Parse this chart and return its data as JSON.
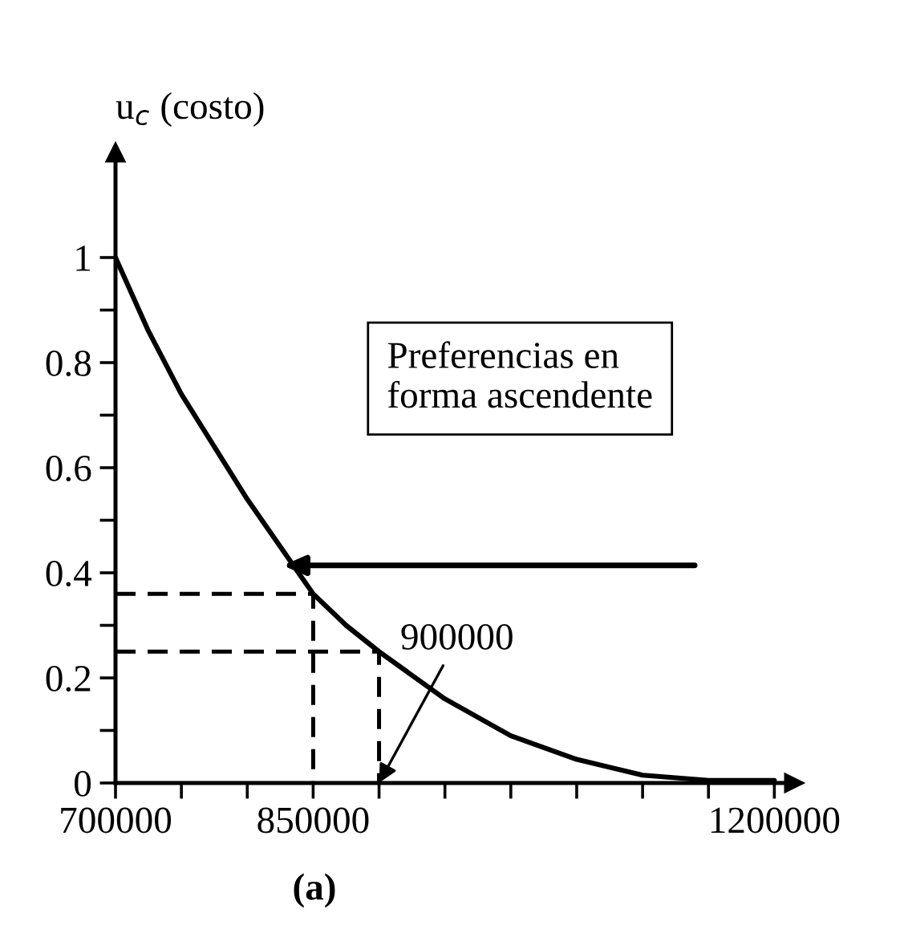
{
  "chart_data": {
    "type": "line",
    "ylabel": "u$_{c}$ (costo)",
    "x": [
      700000,
      725000,
      750000,
      775000,
      800000,
      825000,
      850000,
      875000,
      900000,
      950000,
      1000000,
      1050000,
      1100000,
      1150000,
      1200000
    ],
    "series": [
      {
        "color": "#000000",
        "values": [
          1,
          0.86,
          0.74,
          0.64,
          0.54,
          0.45,
          0.36,
          0.3,
          0.25,
          0.16,
          0.09,
          0.045,
          0.015,
          0.005,
          0.005
        ]
      },
      {
        "color": "#000000",
        "line_style": "dashed",
        "x": [
          700000,
          850000,
          850000
        ],
        "values": [
          0.36,
          0.36,
          0
        ]
      },
      {
        "color": "#000000",
        "line_style": "dashed",
        "x": [
          700000,
          900000,
          900000
        ],
        "values": [
          0.25,
          0.25,
          0
        ]
      }
    ],
    "xlim": [
      700000,
      1215000
    ],
    "ylim": [
      0,
      1.2
    ],
    "xticks": [
      700000,
      {
        "value": 750000,
        "label": null
      },
      {
        "value": 800000,
        "label": null
      },
      850000,
      {
        "value": 900000,
        "label": null
      },
      {
        "value": 950000,
        "label": null
      },
      {
        "value": 1000000,
        "label": null
      },
      {
        "value": 1050000,
        "label": null
      },
      {
        "value": 1100000,
        "label": null
      },
      {
        "value": 1150000,
        "label": null
      },
      1200000
    ],
    "yticks": [
      0,
      {
        "value": 0.1,
        "label": null
      },
      0.2,
      {
        "value": 0.3,
        "label": null
      },
      0.4,
      {
        "value": 0.5,
        "label": null
      },
      0.6,
      {
        "value": 0.7,
        "label": null
      },
      0.8,
      {
        "value": 0.9,
        "label": null
      },
      1
    ],
    "annotations": [
      "Preferencias en\nforma ascendente",
      {
        "text": "900000",
        "x": 900000,
        "y": 0
      },
      "(a)"
    ],
    "grid": false,
    "legend": false,
    "marker": "none",
    "line_style": "solid"
  }
}
